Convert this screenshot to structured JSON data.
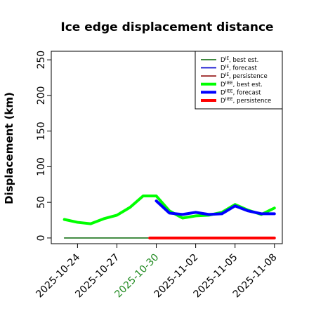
{
  "chart_data": {
    "type": "line",
    "title": "Ice edge displacement distance",
    "xlabel": "",
    "ylabel": "Displacement (km)",
    "xlim": [
      "2025-10-22",
      "2025-11-08.6"
    ],
    "ylim": [
      -8,
      262
    ],
    "yticks": [
      0,
      50,
      100,
      150,
      200,
      250
    ],
    "xticks": [
      "2025-10-24",
      "2025-10-27",
      "2025-10-30",
      "2025-11-02",
      "2025-11-05",
      "2025-11-08"
    ],
    "xtick_colors": [
      "#000000",
      "#000000",
      "#228b22",
      "#000000",
      "#000000",
      "#000000"
    ],
    "grid": false,
    "legend_position": "top-right",
    "series": [
      {
        "name": "D^IE, best est.",
        "color": "#006400",
        "width": "thin",
        "x": [
          "2025-10-23",
          "2025-10-24",
          "2025-10-25",
          "2025-10-26",
          "2025-10-27",
          "2025-10-28",
          "2025-10-29",
          "2025-10-29.5"
        ],
        "y": [
          0,
          0,
          0,
          0,
          0,
          0,
          0,
          0
        ]
      },
      {
        "name": "D^IE, forecast",
        "color": "#0000cd",
        "width": "thin",
        "x": [],
        "y": []
      },
      {
        "name": "D^IE, persistence",
        "color": "#8b0000",
        "width": "thin",
        "x": [],
        "y": []
      },
      {
        "name": "D^IIEE, best est.",
        "color": "#00ff00",
        "width": "thick",
        "x": [
          "2025-10-23",
          "2025-10-24",
          "2025-10-25",
          "2025-10-26",
          "2025-10-27",
          "2025-10-28",
          "2025-10-29",
          "2025-10-30",
          "2025-10-31",
          "2025-11-01",
          "2025-11-02",
          "2025-11-03",
          "2025-11-04",
          "2025-11-05",
          "2025-11-06",
          "2025-11-07",
          "2025-11-08"
        ],
        "y": [
          26,
          22,
          20,
          27,
          32,
          43,
          59,
          59,
          38,
          28,
          31,
          32,
          36,
          47,
          39,
          33,
          42
        ]
      },
      {
        "name": "D^IIEE, forecast",
        "color": "#0000ff",
        "width": "thick",
        "x": [
          "2025-10-30",
          "2025-10-31",
          "2025-11-01",
          "2025-11-02",
          "2025-11-03",
          "2025-11-04",
          "2025-11-05",
          "2025-11-06",
          "2025-11-07",
          "2025-11-08"
        ],
        "y": [
          52,
          35,
          33,
          36,
          33,
          34,
          45,
          38,
          34,
          34
        ]
      },
      {
        "name": "D^IIEE, persistence",
        "color": "#ff0000",
        "width": "thick",
        "x": [
          "2025-10-29.5",
          "2025-10-30",
          "2025-10-31",
          "2025-11-01",
          "2025-11-02",
          "2025-11-03",
          "2025-11-04",
          "2025-11-05",
          "2025-11-06",
          "2025-11-07",
          "2025-11-08"
        ],
        "y": [
          0,
          0,
          0,
          0,
          0,
          0,
          0,
          0,
          0,
          0,
          0
        ]
      }
    ],
    "legend": [
      {
        "base": "D",
        "sup": "IE",
        "text": ", best est."
      },
      {
        "base": "D",
        "sup": "IE",
        "text": ", forecast"
      },
      {
        "base": "D",
        "sup": "IE",
        "text": ", persistence"
      },
      {
        "base": "D",
        "sup": "IIEE",
        "text": ", best est."
      },
      {
        "base": "D",
        "sup": "IIEE",
        "text": ", forecast"
      },
      {
        "base": "D",
        "sup": "IIEE",
        "text": ", persistence"
      }
    ]
  }
}
